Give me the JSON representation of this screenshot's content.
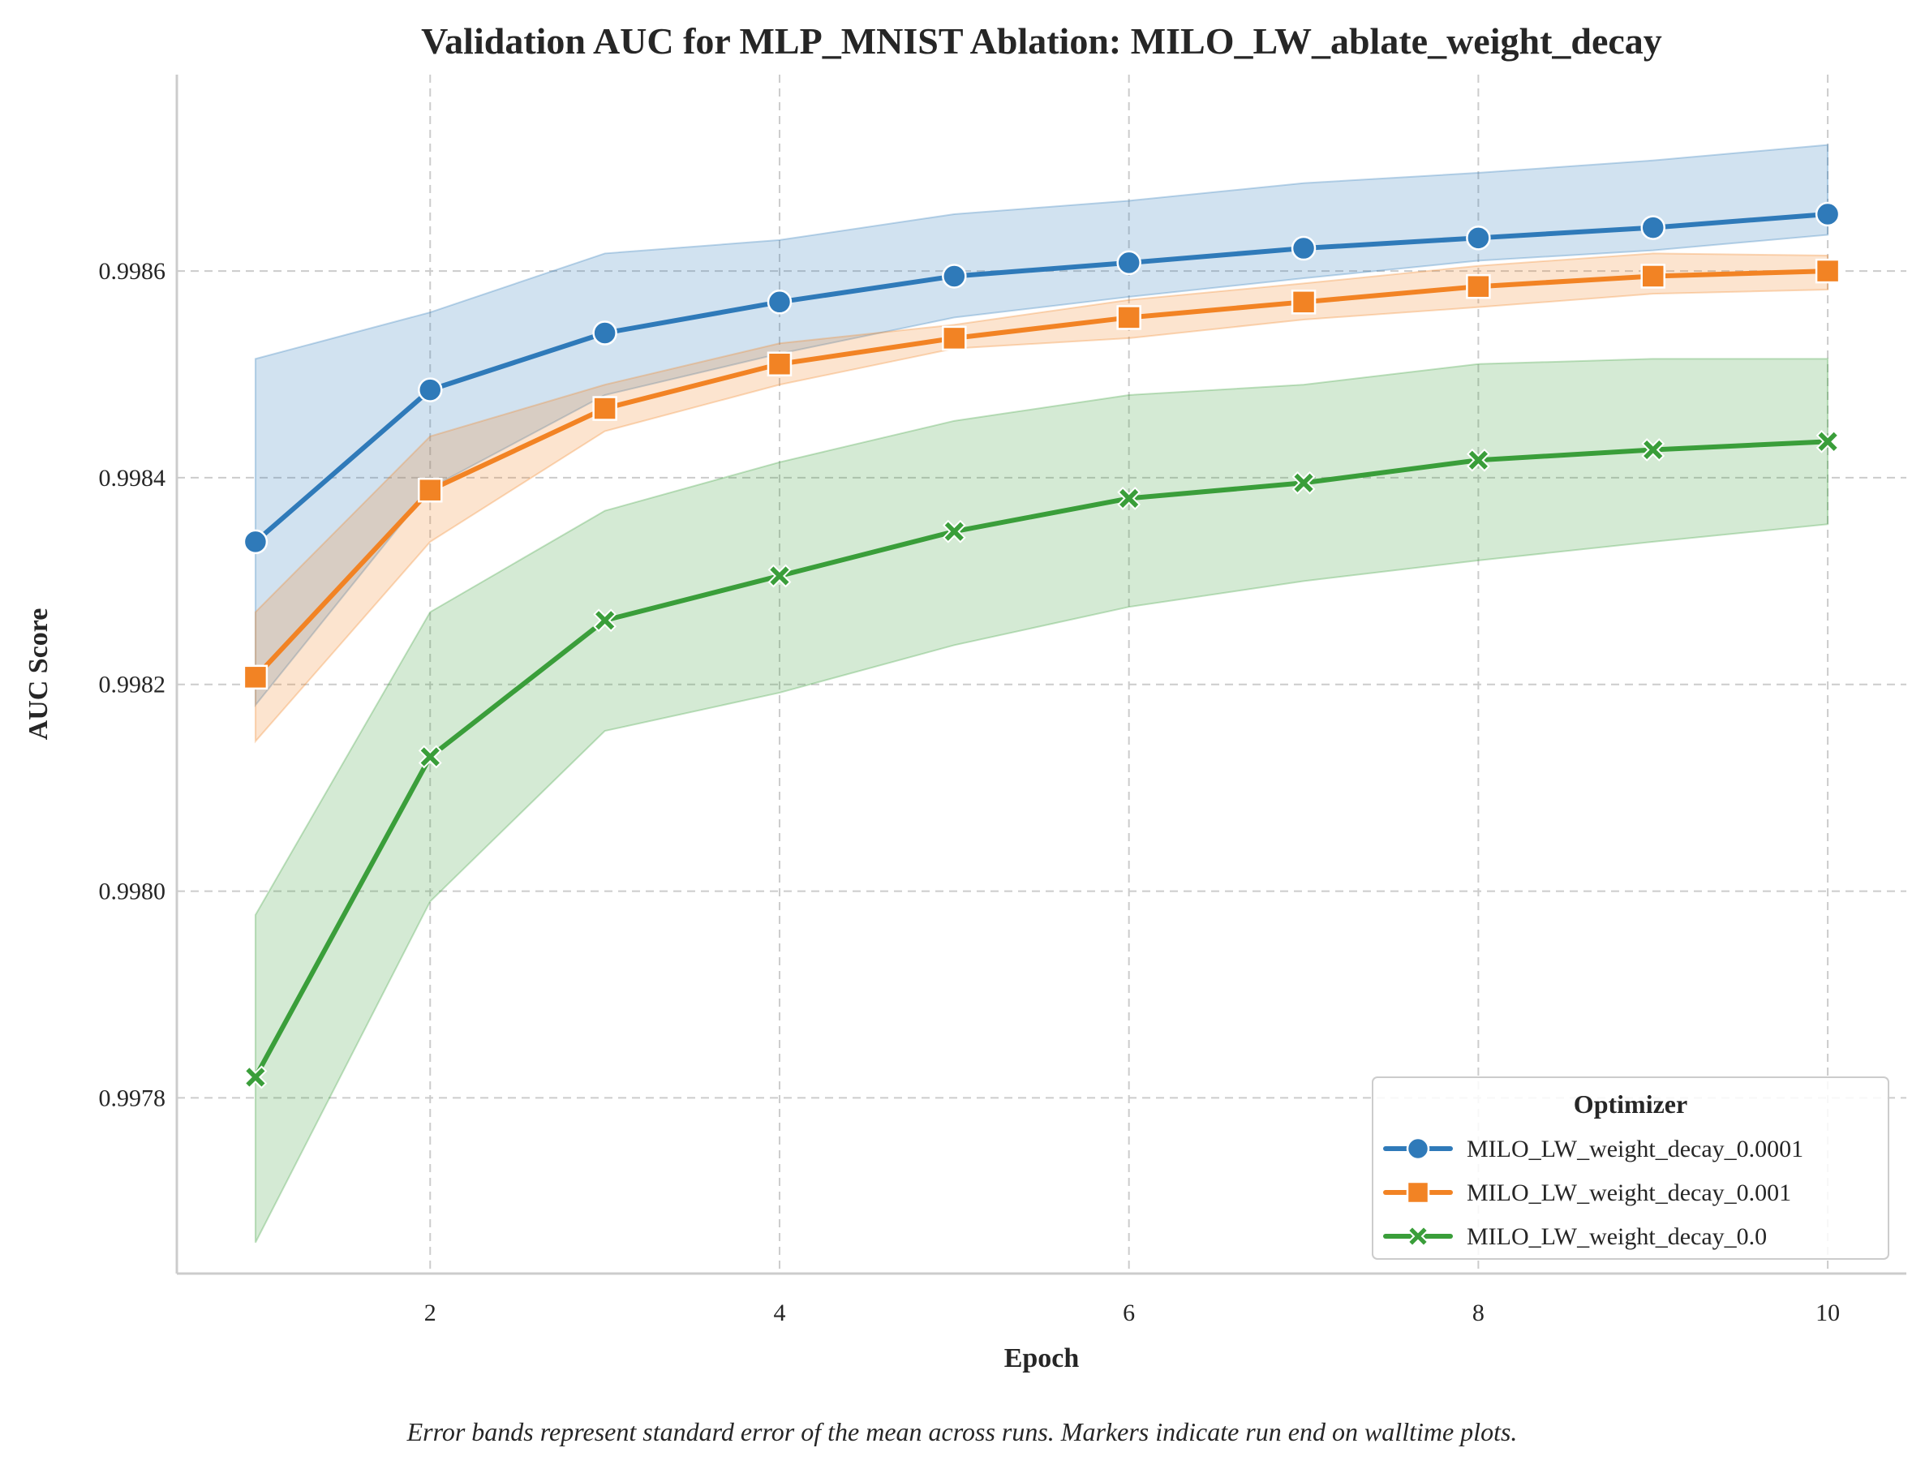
{
  "chart_data": {
    "type": "line",
    "title": "Validation AUC for MLP_MNIST Ablation: MILO_LW_ablate_weight_decay",
    "xlabel": "Epoch",
    "ylabel": "AUC Score",
    "caption": "Error bands represent standard error of the mean across runs. Markers indicate run end on walltime plots.",
    "xlim": [
      0.55,
      10.45
    ],
    "ylim": [
      0.99763,
      0.99879
    ],
    "x_ticks": [
      2,
      4,
      6,
      8,
      10
    ],
    "x_tick_labels": [
      "2",
      "4",
      "6",
      "8",
      "10"
    ],
    "y_ticks": [
      0.9978,
      0.998,
      0.9982,
      0.9984,
      0.9986
    ],
    "y_tick_labels": [
      "0.9978",
      "0.9980",
      "0.9982",
      "0.9984",
      "0.9986"
    ],
    "grid": true,
    "legend": {
      "title": "Optimizer",
      "placement": "lower-right"
    },
    "x": [
      1,
      2,
      3,
      4,
      5,
      6,
      7,
      8,
      9,
      10
    ],
    "series": [
      {
        "name": "MILO_LW_weight_decay_0.0001",
        "color": "#2f7ab9",
        "marker": "circle",
        "values": [
          0.998338,
          0.998485,
          0.99854,
          0.99857,
          0.998595,
          0.998608,
          0.998622,
          0.998632,
          0.998642,
          0.998655
        ],
        "lower": [
          0.99818,
          0.99839,
          0.99848,
          0.99852,
          0.998555,
          0.998575,
          0.998593,
          0.99861,
          0.99862,
          0.998635
        ],
        "upper": [
          0.998515,
          0.99856,
          0.998617,
          0.99863,
          0.998655,
          0.998668,
          0.998685,
          0.998695,
          0.998707,
          0.998722
        ]
      },
      {
        "name": "MILO_LW_weight_decay_0.001",
        "color": "#f28324",
        "marker": "square",
        "values": [
          0.998207,
          0.998388,
          0.998467,
          0.99851,
          0.998535,
          0.998555,
          0.99857,
          0.998585,
          0.998595,
          0.9986
        ],
        "lower": [
          0.998145,
          0.998338,
          0.998445,
          0.99849,
          0.998525,
          0.998535,
          0.998553,
          0.998565,
          0.998578,
          0.998582
        ],
        "upper": [
          0.99827,
          0.99844,
          0.99849,
          0.99853,
          0.998548,
          0.998572,
          0.998588,
          0.998605,
          0.998617,
          0.998615
        ]
      },
      {
        "name": "MILO_LW_weight_decay_0.0",
        "color": "#3a9e3a",
        "marker": "x",
        "values": [
          0.99782,
          0.99813,
          0.998262,
          0.998305,
          0.998348,
          0.99838,
          0.998395,
          0.998417,
          0.998427,
          0.998435
        ],
        "lower": [
          0.99766,
          0.99799,
          0.998155,
          0.998192,
          0.998238,
          0.998275,
          0.9983,
          0.99832,
          0.998338,
          0.998355
        ],
        "upper": [
          0.997977,
          0.99827,
          0.998368,
          0.998415,
          0.998455,
          0.99848,
          0.99849,
          0.99851,
          0.998515,
          0.998515
        ]
      }
    ]
  }
}
